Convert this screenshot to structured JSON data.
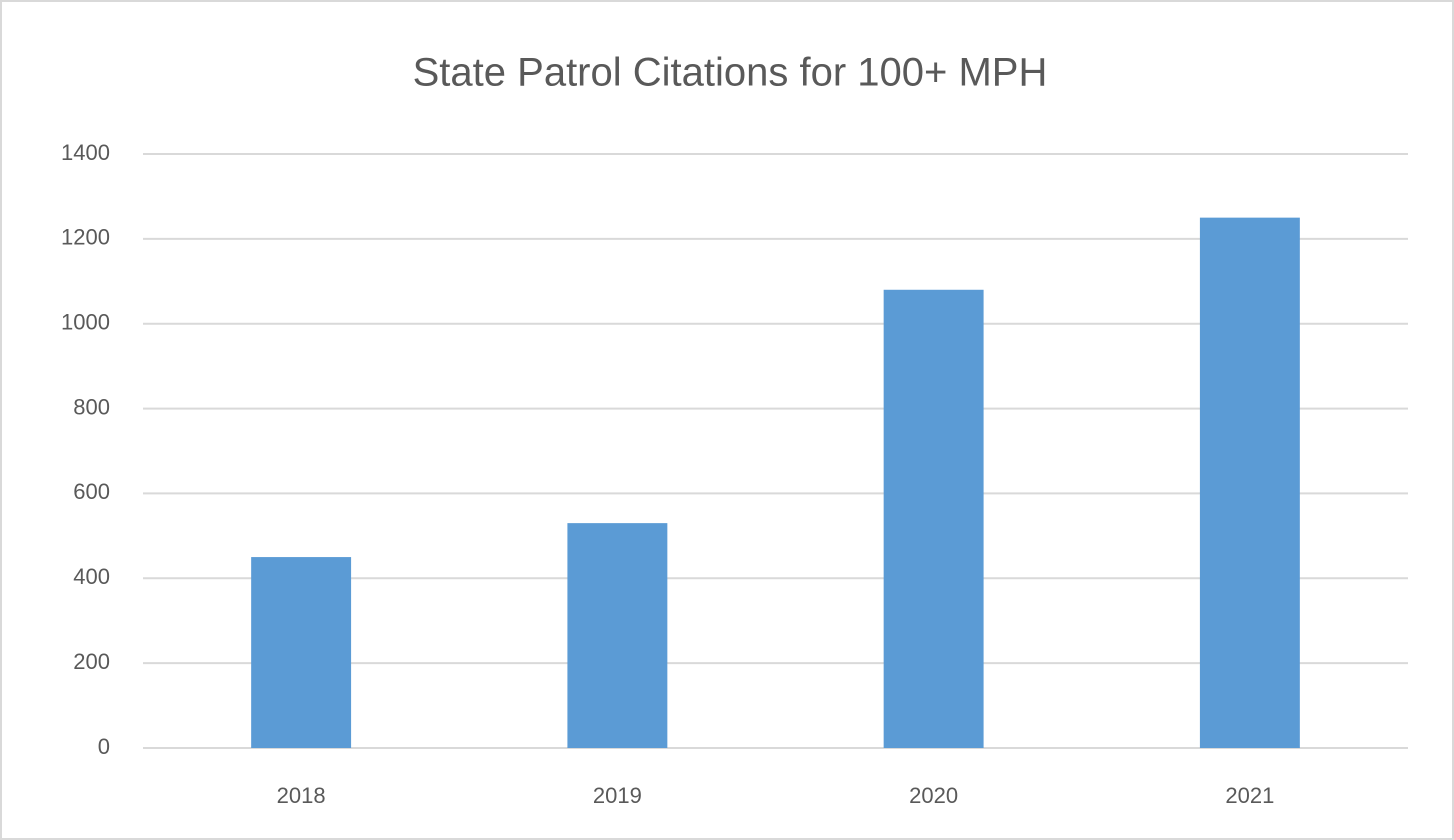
{
  "chart_data": {
    "type": "bar",
    "title": "State Patrol Citations for 100+ MPH",
    "categories": [
      "2018",
      "2019",
      "2020",
      "2021"
    ],
    "values": [
      450,
      530,
      1080,
      1250
    ],
    "color": "#5b9bd5",
    "ylim": [
      0,
      1400
    ],
    "yticks": [
      0,
      200,
      400,
      600,
      800,
      1000,
      1200,
      1400
    ],
    "grid": true
  }
}
